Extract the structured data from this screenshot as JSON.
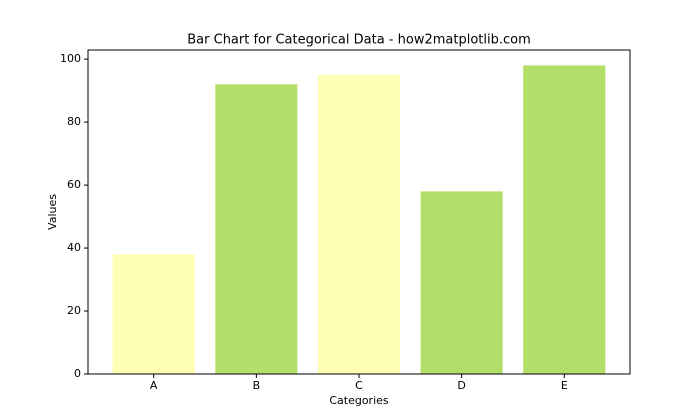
{
  "chart_data": {
    "type": "bar",
    "title": "Bar Chart for Categorical Data - how2matplotlib.com",
    "x_label": "Categories",
    "y_label": "Values",
    "categories": [
      "A",
      "B",
      "C",
      "D",
      "E"
    ],
    "values": [
      38,
      92,
      95,
      58,
      98
    ],
    "colors": [
      "#ffffb3",
      "#b3de69",
      "#ffffb3",
      "#b3de69",
      "#b3de69"
    ],
    "ylim": [
      0,
      102.9
    ],
    "yticks": [
      0,
      20,
      40,
      60,
      80,
      100
    ],
    "grid": false
  }
}
